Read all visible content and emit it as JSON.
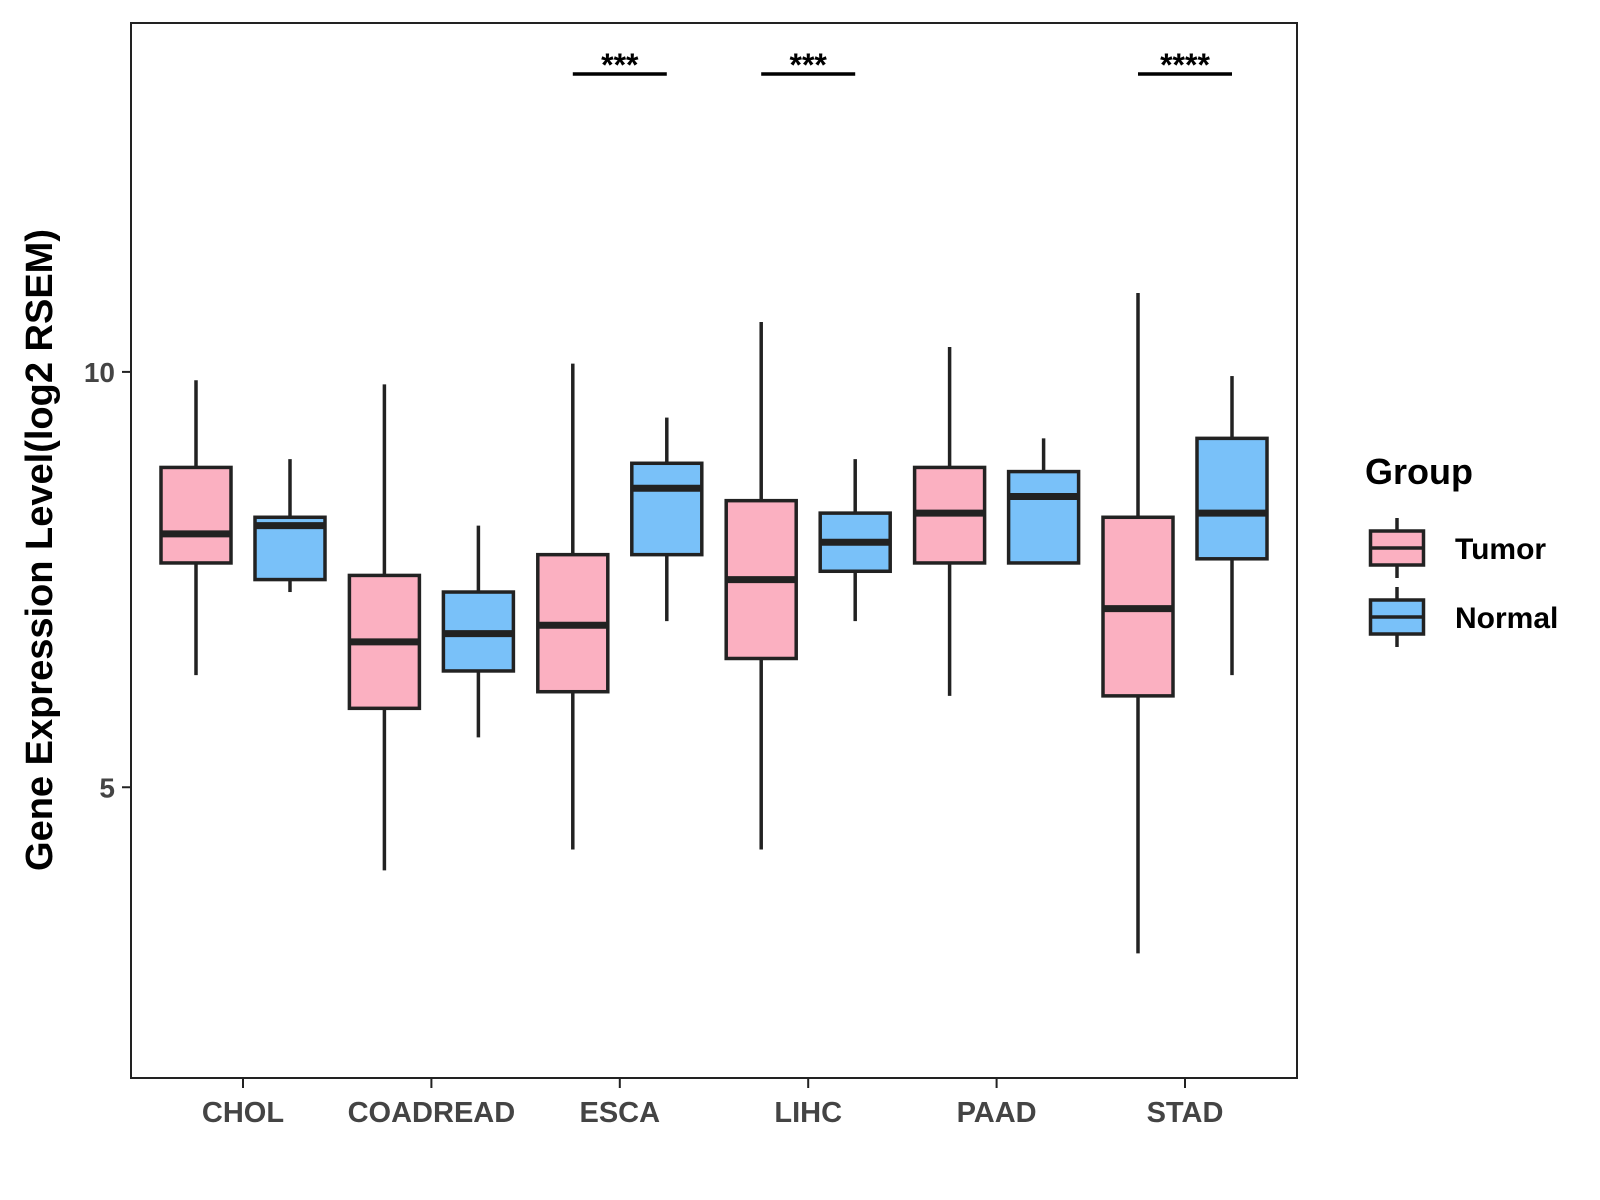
{
  "chart_data": {
    "type": "box",
    "title": "",
    "xlabel": "",
    "ylabel": "Gene Expression Level(log2 RSEM)",
    "categories": [
      "CHOL",
      "COADREAD",
      "ESCA",
      "LIHC",
      "PAAD",
      "STAD"
    ],
    "ylim": [
      1.5,
      14.2
    ],
    "yticks": [
      5,
      10
    ],
    "ytick_labels": [
      "5",
      "10"
    ],
    "legend": {
      "title": "Group",
      "position": "right"
    },
    "colors": {
      "Tumor": "#FBB0C1",
      "Normal": "#79C1F9",
      "stroke": "#222222"
    },
    "series": [
      {
        "name": "Tumor",
        "boxes": [
          {
            "category": "CHOL",
            "min": 6.35,
            "q1": 7.7,
            "median": 8.05,
            "q3": 8.85,
            "max": 9.9
          },
          {
            "category": "COADREAD",
            "min": 4.0,
            "q1": 5.95,
            "median": 6.75,
            "q3": 7.55,
            "max": 9.85
          },
          {
            "category": "ESCA",
            "min": 4.25,
            "q1": 6.15,
            "median": 6.95,
            "q3": 7.8,
            "max": 10.1
          },
          {
            "category": "LIHC",
            "min": 4.25,
            "q1": 6.55,
            "median": 7.5,
            "q3": 8.45,
            "max": 10.6
          },
          {
            "category": "PAAD",
            "min": 6.1,
            "q1": 7.7,
            "median": 8.3,
            "q3": 8.85,
            "max": 10.3
          },
          {
            "category": "STAD",
            "min": 3.0,
            "q1": 6.1,
            "median": 7.15,
            "q3": 8.25,
            "max": 10.95
          }
        ]
      },
      {
        "name": "Normal",
        "boxes": [
          {
            "category": "CHOL",
            "min": 7.35,
            "q1": 7.5,
            "median": 8.15,
            "q3": 8.25,
            "max": 8.95
          },
          {
            "category": "COADREAD",
            "min": 5.6,
            "q1": 6.4,
            "median": 6.85,
            "q3": 7.35,
            "max": 8.15
          },
          {
            "category": "ESCA",
            "min": 7.0,
            "q1": 7.8,
            "median": 8.6,
            "q3": 8.9,
            "max": 9.45
          },
          {
            "category": "LIHC",
            "min": 7.0,
            "q1": 7.6,
            "median": 7.95,
            "q3": 8.3,
            "max": 8.95
          },
          {
            "category": "PAAD",
            "min": 7.7,
            "q1": 7.7,
            "median": 8.5,
            "q3": 8.8,
            "max": 9.2
          },
          {
            "category": "STAD",
            "min": 6.35,
            "q1": 7.75,
            "median": 8.3,
            "q3": 9.2,
            "max": 9.95
          }
        ]
      }
    ],
    "annotations": [
      {
        "category": "ESCA",
        "label": "***"
      },
      {
        "category": "LIHC",
        "label": "***"
      },
      {
        "category": "STAD",
        "label": "****"
      }
    ]
  }
}
